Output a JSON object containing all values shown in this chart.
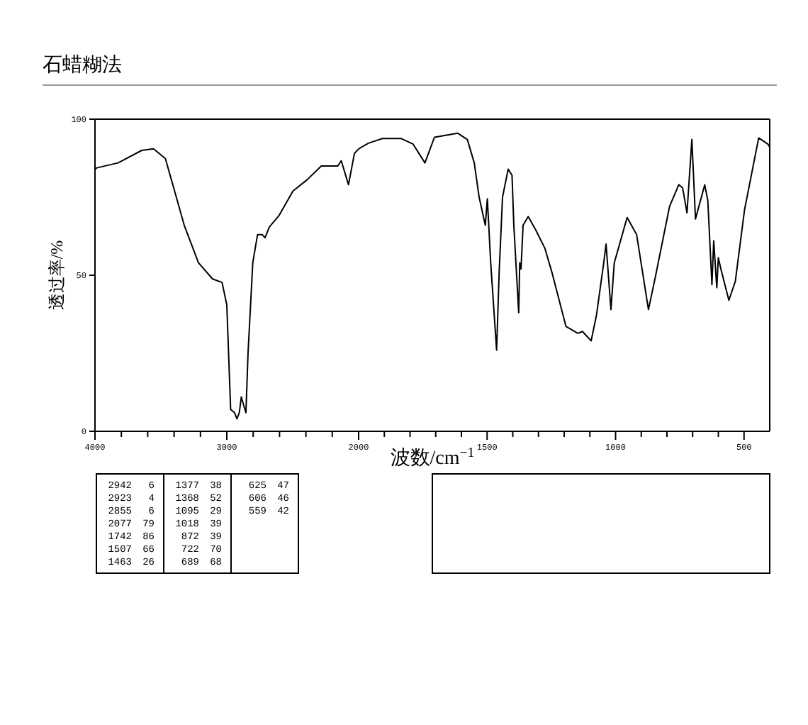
{
  "chart_data": [
    {
      "type": "line",
      "title": "石蜡糊法",
      "ylabel": "透过率/%",
      "x": [
        4000,
        3986,
        3825,
        3645,
        3556,
        3466,
        3395,
        3323,
        3215,
        3108,
        3036,
        3000,
        2971,
        2942,
        2923,
        2905,
        2890,
        2870,
        2855,
        2839,
        2803,
        2767,
        2731,
        2710,
        2677,
        2606,
        2498,
        2391,
        2283,
        2158,
        2132,
        2077,
        2032,
        2000
      ],
      "series": [
        {
          "color": "#000000",
          "values": [
            84,
            84.4,
            86,
            90,
            90.5,
            87.4,
            76.8,
            66,
            54,
            48.8,
            47.7,
            40.5,
            7,
            6,
            4,
            6,
            11,
            8,
            6,
            25,
            54,
            63,
            63,
            62,
            65.5,
            69,
            77,
            80.6,
            85,
            85,
            86.7,
            79,
            89,
            90.5
          ]
        }
      ],
      "xlim": [
        4000,
        2000
      ],
      "xticks": [
        4000,
        {
          "value": 3800,
          "label": null
        },
        {
          "value": 3600,
          "label": null
        },
        {
          "value": 3400,
          "label": null
        },
        {
          "value": 3200,
          "label": null
        },
        3000,
        {
          "value": 2800,
          "label": null
        },
        {
          "value": 2600,
          "label": null
        },
        {
          "value": 2400,
          "label": null
        },
        {
          "value": 2200,
          "label": null
        },
        2000
      ],
      "ylim": [
        0,
        100
      ],
      "yticks": [
        0,
        50,
        100
      ],
      "annotations": [
        "2942",
        "6",
        "2923",
        "4",
        "2855",
        "6",
        "2077",
        "79",
        "1742",
        "86",
        "1507",
        "66",
        "1463",
        "26",
        "1377",
        "38",
        "1368",
        "52",
        "1095",
        "29",
        "1018",
        "39",
        "872",
        "39",
        "722",
        "70",
        "689",
        "68",
        "625",
        "47",
        "606",
        "46",
        "559",
        "42"
      ]
    },
    {
      "type": "line",
      "xlabel": "波数/cm$^{−1}$",
      "x": [
        2000,
        1962,
        1907,
        1834,
        1788,
        1742,
        1705,
        1614,
        1577,
        1550,
        1531,
        1507,
        1499,
        1486,
        1463,
        1453,
        1440,
        1418,
        1403,
        1396,
        1377,
        1373,
        1368,
        1360,
        1340,
        1312,
        1275,
        1248,
        1193,
        1147,
        1129,
        1095,
        1074,
        1046,
        1037,
        1018,
        1005,
        955,
        918,
        872,
        845,
        790,
        754,
        739,
        722,
        703,
        689,
        653,
        641,
        625,
        618,
        606,
        600,
        590,
        559,
        534,
        498,
        443,
        407,
        400
      ],
      "series": [
        {
          "color": "#000000",
          "values": [
            90.5,
            92.3,
            93.8,
            93.8,
            92,
            86,
            94.2,
            95.5,
            93.5,
            86,
            75,
            66,
            74.5,
            54,
            26,
            51,
            75,
            84,
            82,
            66,
            38,
            54,
            52,
            66,
            68.8,
            64.7,
            58.6,
            51,
            33.6,
            31.4,
            32,
            29,
            37.4,
            54,
            60,
            39,
            54,
            68.5,
            63,
            39,
            49.5,
            72,
            79,
            78,
            70,
            93.5,
            68,
            79,
            74,
            47,
            61,
            46,
            55.6,
            52,
            42,
            48,
            71,
            94,
            92,
            91
          ]
        }
      ],
      "xlim": [
        2000,
        400
      ],
      "xticks": [
        {
          "value": 1900,
          "label": null
        },
        {
          "value": 1800,
          "label": null
        },
        {
          "value": 1700,
          "label": null
        },
        {
          "value": 1600,
          "label": null
        },
        1500,
        {
          "value": 1400,
          "label": null
        },
        {
          "value": 1300,
          "label": null
        },
        {
          "value": 1200,
          "label": null
        },
        {
          "value": 1100,
          "label": null
        },
        1000,
        {
          "value": 900,
          "label": null
        },
        {
          "value": 800,
          "label": null
        },
        {
          "value": 700,
          "label": null
        },
        {
          "value": 600,
          "label": null
        },
        500
      ],
      "ylim": [
        0,
        100
      ],
      "tick_labels": "x"
    }
  ]
}
